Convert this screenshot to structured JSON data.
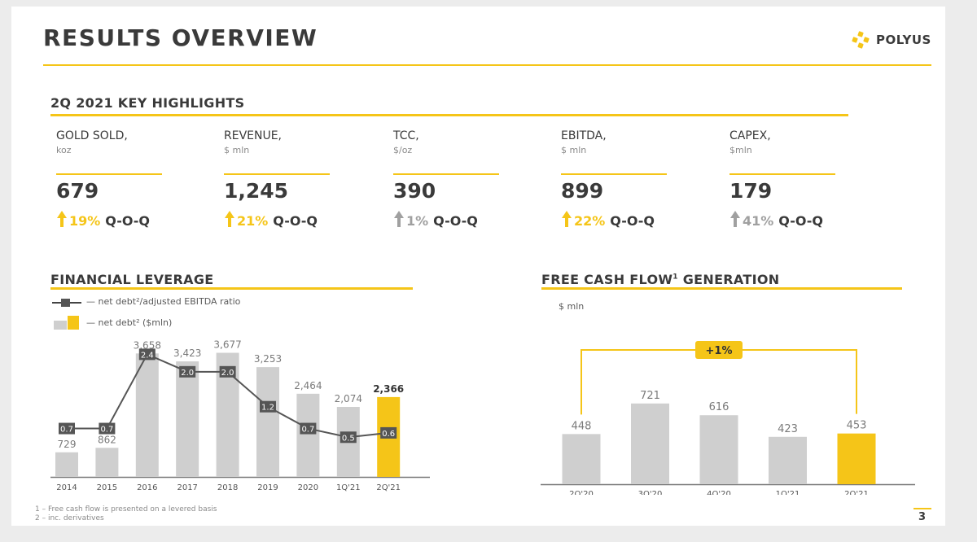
{
  "page": {
    "title": "RESULTS OVERVIEW",
    "logo_text": "POLYUS",
    "page_number": "3",
    "brand_color": "#f5c518",
    "footnotes": [
      "1 – Free cash flow is presented on a levered basis",
      "2 – inc. derivatives"
    ]
  },
  "highlights": {
    "title": "2Q 2021 KEY HIGHLIGHTS",
    "items": [
      {
        "label": "GOLD SOLD,",
        "unit": "koz",
        "value": "679",
        "change": "19%",
        "suffix": "Q-O-Q",
        "color": "#f5c518"
      },
      {
        "label": "REVENUE,",
        "unit": "$ mln",
        "value": "1,245",
        "change": "21%",
        "suffix": "Q-O-Q",
        "color": "#f5c518"
      },
      {
        "label": "TCC,",
        "unit": "$/oz",
        "value": "390",
        "change": "1%",
        "suffix": "Q-O-Q",
        "color": "#a0a0a0"
      },
      {
        "label": "EBITDA,",
        "unit": "$ mln",
        "value": "899",
        "change": "22%",
        "suffix": "Q-O-Q",
        "color": "#f5c518"
      },
      {
        "label": "CAPEX,",
        "unit": "$mln",
        "value": "179",
        "change": "41%",
        "suffix": "Q-O-Q",
        "color": "#a0a0a0"
      }
    ]
  },
  "leverage": {
    "title": "FINANCIAL LEVERAGE",
    "legend_line": "net debt²/adjusted EBITDA ratio",
    "legend_bar": "net debt² ($mln)"
  },
  "fcf": {
    "title_main": "FREE CASH FLOW",
    "title_sup": "1",
    "title_rest": " GENERATION",
    "unit": "$ mln",
    "growth_label": "+1%"
  },
  "chart_data": [
    {
      "type": "bar",
      "title": "FINANCIAL LEVERAGE",
      "categories": [
        "2014",
        "2015",
        "2016",
        "2017",
        "2018",
        "2019",
        "2020",
        "1Q'21",
        "2Q'21"
      ],
      "series": [
        {
          "name": "net debt² ($mln)",
          "values": [
            729,
            862,
            3658,
            3423,
            3677,
            3253,
            2464,
            2074,
            2366
          ],
          "labels": [
            "729",
            "862",
            "3,658",
            "3,423",
            "3,677",
            "3,253",
            "2,464",
            "2,074",
            "2,366"
          ]
        },
        {
          "name": "net debt²/adjusted EBITDA ratio",
          "type": "line",
          "values": [
            0.7,
            0.7,
            2.4,
            2.0,
            2.0,
            1.2,
            0.7,
            0.5,
            0.6
          ],
          "labels": [
            "0.7",
            "0.7",
            "2.4",
            "2.0",
            "2.0",
            "1.2",
            "0.7",
            "0.5",
            "0.6"
          ]
        }
      ],
      "highlight_index": 8,
      "colors": {
        "bar": "#cfcfcf",
        "highlight": "#f5c518",
        "line": "#555555"
      }
    },
    {
      "type": "bar",
      "title": "FREE CASH FLOW GENERATION",
      "categories": [
        "2Q'20",
        "3Q'20",
        "4Q'20",
        "1Q'21",
        "2Q'21"
      ],
      "series": [
        {
          "name": "Free cash flow",
          "values": [
            448,
            721,
            616,
            423,
            453
          ],
          "labels": [
            "448",
            "721",
            "616",
            "423",
            "453"
          ]
        }
      ],
      "highlight_index": 4,
      "colors": {
        "bar": "#cfcfcf",
        "highlight": "#f5c518"
      }
    }
  ]
}
